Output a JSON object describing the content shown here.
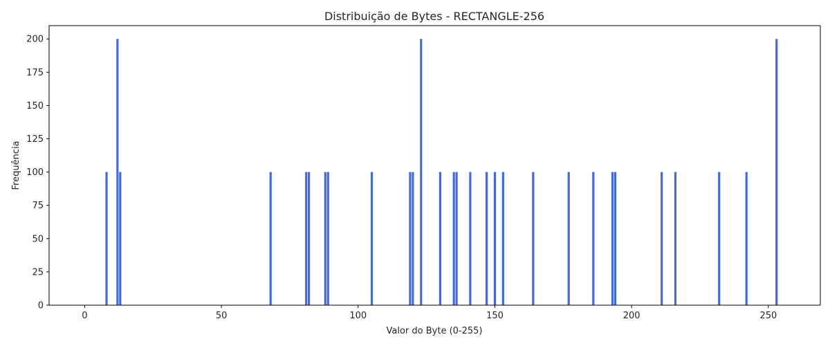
{
  "chart_data": {
    "type": "bar",
    "title": "Distribuição de Bytes - RECTANGLE-256",
    "xlabel": "Valor do Byte (0-255)",
    "ylabel": "Frequência",
    "xlim": [
      -13,
      269
    ],
    "ylim": [
      0,
      210
    ],
    "xticks": [
      0,
      50,
      100,
      150,
      200,
      250
    ],
    "yticks": [
      0,
      25,
      50,
      75,
      100,
      125,
      150,
      175,
      200
    ],
    "bar_color": "#4169e1",
    "grid": false,
    "x": [
      8,
      12,
      13,
      68,
      81,
      82,
      88,
      89,
      105,
      119,
      120,
      123,
      130,
      135,
      136,
      141,
      147,
      150,
      153,
      164,
      177,
      186,
      193,
      194,
      211,
      216,
      232,
      242,
      253
    ],
    "values": [
      100,
      200,
      100,
      100,
      100,
      100,
      100,
      100,
      100,
      100,
      100,
      200,
      100,
      100,
      100,
      100,
      100,
      100,
      100,
      100,
      100,
      100,
      100,
      100,
      100,
      100,
      100,
      100,
      200
    ]
  }
}
